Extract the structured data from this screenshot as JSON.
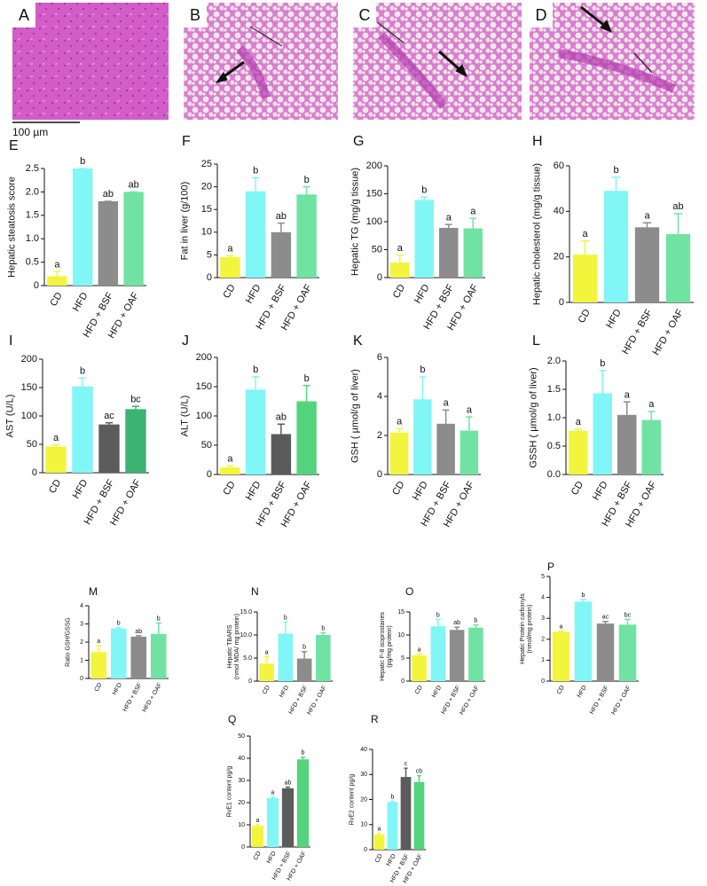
{
  "images": [
    {
      "label": "A"
    },
    {
      "label": "B"
    },
    {
      "label": "C"
    },
    {
      "label": "D"
    }
  ],
  "scale_bar": "100 µm",
  "chart_data": [
    {
      "type": "bar",
      "panel": "E",
      "ylabel": "Hepatic steatosis score",
      "categories": [
        "CD",
        "HFD",
        "HFD + BSF",
        "HFD + OAF"
      ],
      "values": [
        0.2,
        2.5,
        1.8,
        2.0
      ],
      "errors": [
        0.1,
        0,
        0,
        0
      ],
      "annotations": [
        "a",
        "b",
        "ab",
        "ab"
      ],
      "colors": [
        "#f2f53c",
        "#80f6f6",
        "#8c8c8c",
        "#70e3a2"
      ],
      "ylim": [
        0,
        2.5
      ],
      "yticks": [
        0,
        0.5,
        {
          "value": 1,
          "label": "1.0"
        },
        1.5,
        {
          "value": 2,
          "label": "2.0"
        },
        2.5
      ]
    },
    {
      "type": "bar",
      "panel": "F",
      "ylabel": "Fat in liver (g/100)",
      "categories": [
        "CD",
        "HFD",
        "HFD + BSF",
        "HFD + OAF"
      ],
      "values": [
        4.5,
        19,
        10,
        18.3
      ],
      "errors": [
        0.3,
        3,
        2,
        1.7
      ],
      "annotations": [
        "a",
        "b",
        "ab",
        "b"
      ],
      "colors": [
        "#f2f53c",
        "#80f6f6",
        "#8c8c8c",
        "#70e3a2"
      ],
      "ylim": [
        0,
        25
      ],
      "yticks": [
        0,
        5,
        10,
        15,
        20,
        25
      ]
    },
    {
      "type": "bar",
      "panel": "G",
      "ylabel": "Hepatic TG (mg/g tissue)",
      "categories": [
        "CD",
        "HFD",
        "HFD + BSF",
        "HFD + OAF"
      ],
      "values": [
        27,
        139,
        89,
        88
      ],
      "errors": [
        13,
        5,
        6,
        18
      ],
      "annotations": [
        "a",
        "b",
        "a",
        "a"
      ],
      "colors": [
        "#f2f53c",
        "#80f6f6",
        "#8c8c8c",
        "#70e3a2"
      ],
      "ylim": [
        0,
        200
      ],
      "yticks": [
        0,
        50,
        100,
        150,
        200
      ]
    },
    {
      "type": "bar",
      "panel": "H",
      "ylabel": "Hepatic cholesterol (mg/g tissue)",
      "categories": [
        "CD",
        "HFD",
        "HFD + BSF",
        "HFD + OAF"
      ],
      "values": [
        21,
        49,
        33,
        30
      ],
      "errors": [
        6,
        6,
        2,
        9
      ],
      "annotations": [
        "a",
        "b",
        "a",
        "ab"
      ],
      "colors": [
        "#f2f53c",
        "#80f6f6",
        "#8c8c8c",
        "#70e3a2"
      ],
      "ylim": [
        0,
        60
      ],
      "yticks": [
        0,
        20,
        40,
        60
      ]
    },
    {
      "type": "bar",
      "panel": "I",
      "ylabel": "AST (U/L)",
      "categories": [
        "CD",
        "HFD",
        "HFD + BSF",
        "HFD + OAF"
      ],
      "values": [
        46,
        152,
        85,
        112
      ],
      "errors": [
        3,
        15,
        3,
        5
      ],
      "annotations": [
        "a",
        "b",
        "ac",
        "bc"
      ],
      "colors": [
        "#f2f53c",
        "#80f6f6",
        "#5c5c5c",
        "#3db373"
      ],
      "ylim": [
        0,
        200
      ],
      "yticks": [
        0,
        50,
        100,
        150,
        200
      ]
    },
    {
      "type": "bar",
      "panel": "J",
      "ylabel": "ALT (U/L)",
      "categories": [
        "CD",
        "HFD",
        "HFD + BSF",
        "HFD + OAF"
      ],
      "values": [
        12,
        145,
        69,
        125
      ],
      "errors": [
        3,
        22,
        17,
        27
      ],
      "annotations": [
        "a",
        "b",
        "ab",
        "b"
      ],
      "colors": [
        "#f2f53c",
        "#80f6f6",
        "#5a5a5a",
        "#52d47c"
      ],
      "ylim": [
        0,
        200
      ],
      "yticks": [
        0,
        50,
        100,
        150,
        200
      ]
    },
    {
      "type": "bar",
      "panel": "K",
      "ylabel": "GSH ( µmol/g of liver)",
      "categories": [
        "CD",
        "HFD",
        "HFD + BSF",
        "HFD + OAF"
      ],
      "values": [
        2.15,
        3.85,
        2.6,
        2.25
      ],
      "errors": [
        0.2,
        1.15,
        0.7,
        0.7
      ],
      "annotations": [
        "a",
        "b",
        "a",
        "a"
      ],
      "colors": [
        "#f2f53c",
        "#80f6f6",
        "#8c8c8c",
        "#70e3a2"
      ],
      "ylim": [
        0,
        6
      ],
      "yticks": [
        0,
        2,
        4,
        6
      ]
    },
    {
      "type": "bar",
      "panel": "L",
      "ylabel": "GSSH ( µmol/g of liver)",
      "categories": [
        "CD",
        "HFD",
        "HFD + BSF",
        "HFD + OAF"
      ],
      "values": [
        0.77,
        1.43,
        1.05,
        0.96
      ],
      "errors": [
        0.03,
        0.4,
        0.23,
        0.15
      ],
      "annotations": [
        "a",
        "b",
        "a",
        "a"
      ],
      "colors": [
        "#f2f53c",
        "#80f6f6",
        "#8c8c8c",
        "#70e3a2"
      ],
      "ylim": [
        0,
        2
      ],
      "yticks": [
        {
          "value": 0,
          "label": "0.0"
        },
        0.5,
        {
          "value": 1,
          "label": "1.0"
        },
        1.5,
        {
          "value": 2,
          "label": "2.0"
        }
      ]
    },
    {
      "type": "bar",
      "panel": "M",
      "ylabel": "Ratio GSH/GSSG",
      "categories": [
        "CD",
        "HFD",
        "HFD + BSF",
        "HFD + OAF"
      ],
      "values": [
        1.45,
        2.75,
        2.3,
        2.45
      ],
      "errors": [
        0.35,
        0.05,
        0.05,
        0.6
      ],
      "annotations": [
        "a",
        "b",
        "ab",
        "b"
      ],
      "colors": [
        "#f2f53c",
        "#80f6f6",
        "#8c8c8c",
        "#70e3a2"
      ],
      "ylim": [
        0,
        4
      ],
      "yticks": [
        0,
        1,
        2,
        3,
        4
      ]
    },
    {
      "type": "bar",
      "panel": "N",
      "ylabel": [
        "Hepatic TBARS",
        "(nmol MDA/ mg protein)"
      ],
      "categories": [
        "CD",
        "HFD",
        "HFD + BSF",
        "HFD + OAF"
      ],
      "values": [
        3.8,
        10.3,
        4.9,
        10
      ],
      "errors": [
        1.5,
        2.5,
        1.5,
        0.5
      ],
      "annotations": [
        "a",
        "b",
        "b",
        "b"
      ],
      "colors": [
        "#f2f53c",
        "#80f6f6",
        "#8c8c8c",
        "#70e3a2"
      ],
      "ylim": [
        0,
        15
      ],
      "yticks": [
        0,
        {
          "value": 5,
          "label": "5.0"
        },
        {
          "value": 10,
          "label": "10.0"
        },
        {
          "value": 15,
          "label": "15.0"
        }
      ]
    },
    {
      "type": "bar",
      "panel": "O",
      "ylabel": [
        "Hepatic F-8 isoprostanes",
        "(pg/mg protein)"
      ],
      "categories": [
        "CD",
        "HFD",
        "HFD + BSF",
        "HFD + OAF"
      ],
      "values": [
        5.6,
        11.9,
        11.1,
        11.6
      ],
      "errors": [
        0.3,
        1.5,
        0.6,
        0.6
      ],
      "annotations": [
        "a",
        "b",
        "ab",
        "b"
      ],
      "colors": [
        "#f2f53c",
        "#80f6f6",
        "#8c8c8c",
        "#70e3a2"
      ],
      "ylim": [
        0,
        15
      ],
      "yticks": [
        0,
        5,
        10,
        15
      ]
    },
    {
      "type": "bar",
      "panel": "P",
      "ylabel": [
        "Hepatic Protein carbonyls",
        "(nmol/mg protein)"
      ],
      "categories": [
        "CD",
        "HFD",
        "HFD + BSF",
        "HFD + OAF"
      ],
      "values": [
        2.35,
        3.8,
        2.75,
        2.7
      ],
      "errors": [
        0.05,
        0.1,
        0.1,
        0.25
      ],
      "annotations": [
        "a",
        "b",
        "ac",
        "bc"
      ],
      "colors": [
        "#f2f53c",
        "#80f6f6",
        "#8c8c8c",
        "#70e3a2"
      ],
      "ylim": [
        0,
        5
      ],
      "yticks": [
        0,
        1,
        2,
        3,
        4,
        5
      ]
    },
    {
      "type": "bar",
      "panel": "Q",
      "ylabel": "RvE1 content pg/g",
      "categories": [
        "CD",
        "HFD",
        "HFD + BSF",
        "HFD + OAF"
      ],
      "values": [
        9.5,
        22,
        26.5,
        39.5
      ],
      "errors": [
        0.5,
        0.5,
        0.5,
        1
      ],
      "annotations": [
        "a",
        "a",
        "ab",
        "b"
      ],
      "colors": [
        "#f2f53c",
        "#80f6f6",
        "#5c5c5c",
        "#52d47c"
      ],
      "ylim": [
        0,
        50
      ],
      "yticks": [
        0,
        10,
        20,
        30,
        40,
        50
      ]
    },
    {
      "type": "bar",
      "panel": "R",
      "ylabel": "RvE2 content pg/g",
      "categories": [
        "CD",
        "HFD",
        "HFD + BSF",
        "HFD + OAF"
      ],
      "values": [
        6,
        19,
        29,
        27
      ],
      "errors": [
        0.5,
        0.3,
        3.5,
        2.5
      ],
      "annotations": [
        "a",
        "b",
        "c",
        "cb"
      ],
      "colors": [
        "#f2f53c",
        "#80f6f6",
        "#5c5c5c",
        "#52d47c"
      ],
      "ylim": [
        0,
        40
      ],
      "yticks": [
        0,
        10,
        20,
        30,
        40
      ]
    }
  ]
}
